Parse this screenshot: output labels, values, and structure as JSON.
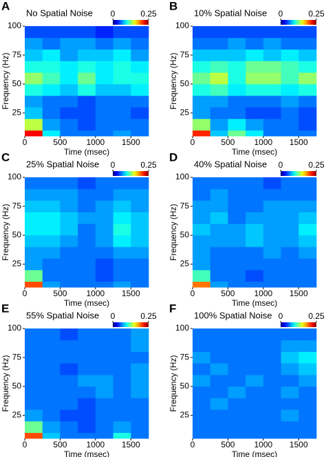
{
  "chart_data": [
    {
      "type": "heatmap",
      "panel": "A",
      "title": "No Spatial Noise",
      "xlabel": "Time (msec)",
      "ylabel": "Frequency (Hz)",
      "colormap": "jet",
      "xlim": [
        0,
        1750
      ],
      "ylim": [
        5,
        100
      ],
      "xticks": [
        0,
        500,
        1000,
        1500
      ],
      "yticks": [
        25,
        50,
        75,
        100
      ],
      "clim": [
        0,
        0.25
      ],
      "cticks": [
        0,
        0.25
      ],
      "xbins": [
        0,
        250,
        500,
        750,
        1000,
        1250,
        1500,
        1750
      ],
      "ybins": [
        5,
        10,
        20,
        30,
        40,
        50,
        60,
        70,
        80,
        90,
        100
      ],
      "values": [
        [
          0.22,
          0.09,
          0.06,
          0.06,
          0.06,
          0.07,
          0.06
        ],
        [
          0.14,
          0.07,
          0.06,
          0.05,
          0.06,
          0.06,
          0.06
        ],
        [
          0.08,
          0.06,
          0.05,
          0.05,
          0.06,
          0.06,
          0.05
        ],
        [
          0.07,
          0.06,
          0.06,
          0.05,
          0.06,
          0.06,
          0.06
        ],
        [
          0.1,
          0.09,
          0.08,
          0.1,
          0.08,
          0.08,
          0.09
        ],
        [
          0.13,
          0.11,
          0.09,
          0.12,
          0.09,
          0.1,
          0.1
        ],
        [
          0.1,
          0.1,
          0.09,
          0.1,
          0.09,
          0.1,
          0.09
        ],
        [
          0.08,
          0.09,
          0.07,
          0.08,
          0.08,
          0.09,
          0.07
        ],
        [
          0.07,
          0.06,
          0.07,
          0.07,
          0.06,
          0.07,
          0.06
        ],
        [
          0.05,
          0.05,
          0.05,
          0.05,
          0.04,
          0.05,
          0.05
        ]
      ]
    },
    {
      "type": "heatmap",
      "panel": "B",
      "title": "10% Spatial Noise",
      "xlabel": "Time (msec)",
      "ylabel": "Frequency (Hz)",
      "colormap": "jet",
      "xlim": [
        0,
        1750
      ],
      "ylim": [
        5,
        100
      ],
      "xticks": [
        0,
        500,
        1000,
        1500
      ],
      "yticks": [
        25,
        50,
        75,
        100
      ],
      "clim": [
        0,
        0.25
      ],
      "cticks": [
        0,
        0.25
      ],
      "xbins": [
        0,
        250,
        500,
        750,
        1000,
        1250,
        1500,
        1750
      ],
      "ybins": [
        5,
        10,
        20,
        30,
        40,
        50,
        60,
        70,
        80,
        90,
        100
      ],
      "values": [
        [
          0.21,
          0.08,
          0.12,
          0.09,
          0.06,
          0.06,
          0.06
        ],
        [
          0.13,
          0.07,
          0.09,
          0.07,
          0.06,
          0.06,
          0.05
        ],
        [
          0.07,
          0.06,
          0.06,
          0.05,
          0.05,
          0.06,
          0.05
        ],
        [
          0.07,
          0.07,
          0.06,
          0.06,
          0.06,
          0.07,
          0.06
        ],
        [
          0.1,
          0.11,
          0.09,
          0.1,
          0.1,
          0.09,
          0.1
        ],
        [
          0.12,
          0.14,
          0.1,
          0.13,
          0.13,
          0.11,
          0.13
        ],
        [
          0.1,
          0.11,
          0.1,
          0.12,
          0.12,
          0.11,
          0.1
        ],
        [
          0.08,
          0.08,
          0.08,
          0.09,
          0.08,
          0.09,
          0.08
        ],
        [
          0.06,
          0.06,
          0.07,
          0.06,
          0.07,
          0.06,
          0.06
        ],
        [
          0.05,
          0.05,
          0.05,
          0.05,
          0.05,
          0.05,
          0.05
        ]
      ]
    },
    {
      "type": "heatmap",
      "panel": "C",
      "title": "25% Spatial Noise",
      "xlabel": "Time (msec)",
      "ylabel": "Frequency (Hz)",
      "colormap": "jet",
      "xlim": [
        0,
        1750
      ],
      "ylim": [
        5,
        100
      ],
      "xticks": [
        0,
        500,
        1000,
        1500
      ],
      "yticks": [
        25,
        50,
        75,
        100
      ],
      "clim": [
        0,
        0.25
      ],
      "cticks": [
        0,
        0.25
      ],
      "xbins": [
        0,
        250,
        500,
        750,
        1000,
        1250,
        1500,
        1750
      ],
      "ybins": [
        5,
        10,
        20,
        30,
        40,
        50,
        60,
        70,
        80,
        90,
        100
      ],
      "values": [
        [
          0.2,
          0.07,
          0.06,
          0.06,
          0.06,
          0.07,
          0.06
        ],
        [
          0.12,
          0.06,
          0.06,
          0.06,
          0.05,
          0.06,
          0.06
        ],
        [
          0.07,
          0.06,
          0.06,
          0.06,
          0.05,
          0.06,
          0.06
        ],
        [
          0.07,
          0.07,
          0.06,
          0.06,
          0.06,
          0.07,
          0.07
        ],
        [
          0.08,
          0.08,
          0.07,
          0.06,
          0.07,
          0.09,
          0.08
        ],
        [
          0.09,
          0.09,
          0.08,
          0.06,
          0.07,
          0.1,
          0.08
        ],
        [
          0.09,
          0.09,
          0.08,
          0.07,
          0.07,
          0.09,
          0.08
        ],
        [
          0.08,
          0.08,
          0.07,
          0.06,
          0.07,
          0.08,
          0.07
        ],
        [
          0.07,
          0.07,
          0.07,
          0.06,
          0.06,
          0.07,
          0.07
        ],
        [
          0.06,
          0.06,
          0.06,
          0.05,
          0.06,
          0.06,
          0.06
        ]
      ]
    },
    {
      "type": "heatmap",
      "panel": "D",
      "title": "40% Spatial Noise",
      "xlabel": "Time (msec)",
      "ylabel": "Frequency (Hz)",
      "colormap": "jet",
      "xlim": [
        0,
        1750
      ],
      "ylim": [
        5,
        100
      ],
      "xticks": [
        0,
        500,
        1000,
        1500
      ],
      "yticks": [
        25,
        50,
        75,
        100
      ],
      "clim": [
        0,
        0.25
      ],
      "cticks": [
        0,
        0.25
      ],
      "xbins": [
        0,
        250,
        500,
        750,
        1000,
        1250,
        1500,
        1750
      ],
      "ybins": [
        5,
        10,
        20,
        30,
        40,
        50,
        60,
        70,
        80,
        90,
        100
      ],
      "values": [
        [
          0.19,
          0.07,
          0.06,
          0.06,
          0.06,
          0.06,
          0.06
        ],
        [
          0.11,
          0.06,
          0.06,
          0.05,
          0.06,
          0.06,
          0.06
        ],
        [
          0.07,
          0.06,
          0.06,
          0.06,
          0.06,
          0.06,
          0.06
        ],
        [
          0.07,
          0.06,
          0.06,
          0.06,
          0.07,
          0.06,
          0.07
        ],
        [
          0.07,
          0.07,
          0.07,
          0.08,
          0.07,
          0.07,
          0.08
        ],
        [
          0.08,
          0.07,
          0.07,
          0.08,
          0.07,
          0.07,
          0.09
        ],
        [
          0.07,
          0.08,
          0.06,
          0.07,
          0.07,
          0.07,
          0.08
        ],
        [
          0.07,
          0.07,
          0.06,
          0.06,
          0.07,
          0.07,
          0.07
        ],
        [
          0.06,
          0.07,
          0.06,
          0.06,
          0.06,
          0.06,
          0.06
        ],
        [
          0.06,
          0.06,
          0.06,
          0.06,
          0.05,
          0.06,
          0.06
        ]
      ]
    },
    {
      "type": "heatmap",
      "panel": "E",
      "title": "55% Spatial Noise",
      "xlabel": "Time (msec)",
      "ylabel": "Frequency (Hz)",
      "colormap": "jet",
      "xlim": [
        0,
        1750
      ],
      "ylim": [
        5,
        100
      ],
      "xticks": [
        0,
        500,
        1000,
        1500
      ],
      "yticks": [
        25,
        50,
        75,
        100
      ],
      "clim": [
        0,
        0.25
      ],
      "cticks": [
        0,
        0.25
      ],
      "xbins": [
        0,
        250,
        500,
        750,
        1000,
        1250,
        1500,
        1750
      ],
      "ybins": [
        5,
        10,
        20,
        30,
        40,
        50,
        60,
        70,
        80,
        90,
        100
      ],
      "values": [
        [
          0.2,
          0.08,
          0.06,
          0.06,
          0.06,
          0.1,
          0.06
        ],
        [
          0.12,
          0.07,
          0.06,
          0.05,
          0.06,
          0.07,
          0.06
        ],
        [
          0.07,
          0.06,
          0.05,
          0.05,
          0.06,
          0.06,
          0.06
        ],
        [
          0.06,
          0.06,
          0.06,
          0.05,
          0.06,
          0.06,
          0.06
        ],
        [
          0.06,
          0.06,
          0.06,
          0.06,
          0.07,
          0.06,
          0.07
        ],
        [
          0.06,
          0.06,
          0.06,
          0.07,
          0.07,
          0.06,
          0.07
        ],
        [
          0.06,
          0.06,
          0.05,
          0.06,
          0.06,
          0.06,
          0.07
        ],
        [
          0.06,
          0.06,
          0.06,
          0.06,
          0.06,
          0.06,
          0.06
        ],
        [
          0.06,
          0.06,
          0.06,
          0.06,
          0.06,
          0.06,
          0.07
        ],
        [
          0.06,
          0.06,
          0.05,
          0.06,
          0.06,
          0.06,
          0.07
        ]
      ]
    },
    {
      "type": "heatmap",
      "panel": "F",
      "title": "100% Spatial Noise",
      "xlabel": "Time (msec)",
      "ylabel": "Frequency (Hz)",
      "colormap": "jet",
      "xlim": [
        0,
        1750
      ],
      "ylim": [
        5,
        100
      ],
      "xticks": [
        0,
        500,
        1000,
        1500
      ],
      "yticks": [
        25,
        50,
        75,
        100
      ],
      "clim": [
        0,
        0.25
      ],
      "cticks": [
        0,
        0.25
      ],
      "xbins": [
        0,
        250,
        500,
        750,
        1000,
        1250,
        1500,
        1750
      ],
      "ybins": [
        5,
        10,
        20,
        30,
        40,
        50,
        60,
        70,
        80,
        90,
        100
      ],
      "values": [
        [
          0.06,
          0.06,
          0.06,
          0.06,
          0.06,
          0.06,
          0.06
        ],
        [
          0.06,
          0.06,
          0.06,
          0.06,
          0.06,
          0.06,
          0.06
        ],
        [
          0.06,
          0.06,
          0.06,
          0.06,
          0.06,
          0.07,
          0.06
        ],
        [
          0.06,
          0.07,
          0.06,
          0.06,
          0.06,
          0.06,
          0.06
        ],
        [
          0.06,
          0.06,
          0.07,
          0.06,
          0.06,
          0.07,
          0.06
        ],
        [
          0.07,
          0.06,
          0.06,
          0.07,
          0.06,
          0.06,
          0.07
        ],
        [
          0.06,
          0.07,
          0.06,
          0.06,
          0.06,
          0.07,
          0.08
        ],
        [
          0.07,
          0.06,
          0.06,
          0.06,
          0.06,
          0.08,
          0.09
        ],
        [
          0.06,
          0.06,
          0.06,
          0.06,
          0.06,
          0.07,
          0.07
        ],
        [
          0.06,
          0.06,
          0.06,
          0.06,
          0.06,
          0.06,
          0.06
        ]
      ]
    }
  ]
}
